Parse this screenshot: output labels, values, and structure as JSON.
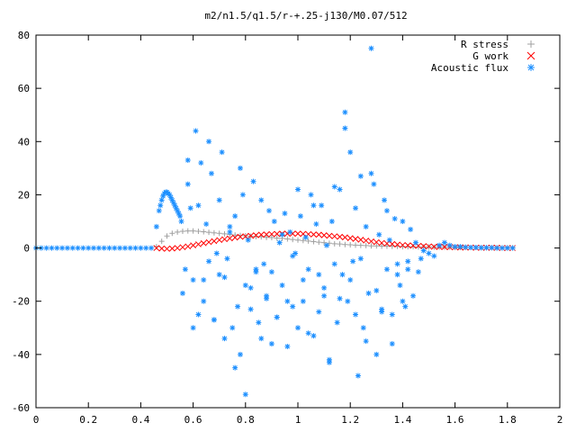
{
  "chart_data": {
    "type": "scatter",
    "title": "m2/n1.5/q1.5/r-+.25-j130/M0.07/512",
    "xlabel": "",
    "ylabel": "",
    "xlim": [
      0,
      2
    ],
    "ylim": [
      -60,
      80
    ],
    "x_ticks": [
      0,
      0.2,
      0.4,
      0.6,
      0.8,
      1,
      1.2,
      1.4,
      1.6,
      1.8,
      2
    ],
    "x_tick_labels": [
      "0",
      "0.2",
      "0.4",
      "0.6",
      "0.8",
      "1",
      "1.2",
      "1.4",
      "1.6",
      "1.8",
      "2"
    ],
    "y_ticks": [
      -60,
      -40,
      -20,
      0,
      20,
      40,
      60,
      80
    ],
    "y_tick_labels": [
      "-60",
      "-40",
      "-20",
      "0",
      "20",
      "40",
      "60",
      "80"
    ],
    "grid": false,
    "legend_position": "top-right",
    "series": [
      {
        "name": "R stress",
        "marker": "plus",
        "color": "#a0a0a0",
        "x": [
          0.46,
          0.48,
          0.5,
          0.52,
          0.54,
          0.56,
          0.58,
          0.6,
          0.62,
          0.64,
          0.66,
          0.68,
          0.7,
          0.72,
          0.74,
          0.76,
          0.78,
          0.8,
          0.82,
          0.84,
          0.86,
          0.88,
          0.9,
          0.92,
          0.94,
          0.96,
          0.98,
          1.0,
          1.02,
          1.04,
          1.06,
          1.08,
          1.1,
          1.12,
          1.14,
          1.16,
          1.18,
          1.2,
          1.22,
          1.24,
          1.26,
          1.28,
          1.3,
          1.32,
          1.34,
          1.36,
          1.38,
          1.4,
          1.42,
          1.44,
          1.46,
          1.48,
          1.5,
          1.52,
          1.54,
          1.56,
          1.58,
          1.6,
          1.62,
          1.64,
          1.66,
          1.68,
          1.7,
          1.72,
          1.74,
          1.76,
          1.78,
          1.8,
          1.82
        ],
        "y": [
          0.5,
          2.5,
          4.5,
          5.5,
          6.0,
          6.3,
          6.4,
          6.4,
          6.3,
          6.1,
          5.9,
          5.7,
          5.5,
          5.3,
          5.1,
          4.9,
          4.7,
          4.6,
          4.4,
          4.3,
          4.2,
          4.0,
          3.9,
          3.7,
          3.6,
          3.4,
          3.2,
          3.0,
          2.8,
          2.6,
          2.4,
          2.2,
          2.0,
          1.8,
          1.6,
          1.5,
          1.3,
          1.2,
          1.1,
          1.0,
          0.9,
          0.8,
          0.8,
          0.7,
          0.7,
          0.6,
          0.6,
          0.5,
          0.5,
          0.5,
          0.4,
          0.4,
          0.4,
          0.3,
          0.3,
          0.3,
          0.3,
          0.2,
          0.2,
          0.2,
          0.2,
          0.2,
          0.1,
          0.1,
          0.1,
          0.1,
          0.1,
          0.1,
          0.1
        ]
      },
      {
        "name": "G work",
        "marker": "cross",
        "color": "#ff0000",
        "x": [
          0.46,
          0.48,
          0.5,
          0.52,
          0.54,
          0.56,
          0.58,
          0.6,
          0.62,
          0.64,
          0.66,
          0.68,
          0.7,
          0.72,
          0.74,
          0.76,
          0.78,
          0.8,
          0.82,
          0.84,
          0.86,
          0.88,
          0.9,
          0.92,
          0.94,
          0.96,
          0.98,
          1.0,
          1.02,
          1.04,
          1.06,
          1.08,
          1.1,
          1.12,
          1.14,
          1.16,
          1.18,
          1.2,
          1.22,
          1.24,
          1.26,
          1.28,
          1.3,
          1.32,
          1.34,
          1.36,
          1.38,
          1.4,
          1.42,
          1.44,
          1.46,
          1.48,
          1.5,
          1.52,
          1.54,
          1.56,
          1.58,
          1.6,
          1.62,
          1.64,
          1.66,
          1.68,
          1.7,
          1.72,
          1.74,
          1.76,
          1.78,
          1.8,
          1.82
        ],
        "y": [
          0.0,
          -0.2,
          -0.3,
          -0.2,
          0.0,
          0.3,
          0.6,
          1.0,
          1.4,
          1.8,
          2.2,
          2.6,
          3.0,
          3.3,
          3.6,
          3.9,
          4.2,
          4.4,
          4.6,
          4.8,
          5.0,
          5.1,
          5.2,
          5.3,
          5.4,
          5.4,
          5.4,
          5.4,
          5.3,
          5.2,
          5.1,
          5.0,
          4.8,
          4.6,
          4.4,
          4.2,
          4.0,
          3.7,
          3.4,
          3.1,
          2.8,
          2.5,
          2.2,
          1.9,
          1.7,
          1.5,
          1.3,
          1.1,
          1.0,
          0.9,
          0.8,
          0.7,
          0.6,
          0.5,
          0.4,
          0.4,
          0.3,
          0.3,
          0.2,
          0.2,
          0.2,
          0.1,
          0.1,
          0.1,
          0.1,
          0.1,
          0.0,
          0.0,
          0.0
        ]
      },
      {
        "name": "Acoustic flux",
        "marker": "star",
        "color": "#1e90ff",
        "x": [
          0,
          0.02,
          0.04,
          0.06,
          0.08,
          0.1,
          0.12,
          0.14,
          0.16,
          0.18,
          0.2,
          0.22,
          0.24,
          0.26,
          0.28,
          0.3,
          0.32,
          0.34,
          0.36,
          0.38,
          0.4,
          0.42,
          0.44,
          0.46,
          0.47,
          0.475,
          0.48,
          0.485,
          0.49,
          0.495,
          0.5,
          0.505,
          0.51,
          0.515,
          0.52,
          0.525,
          0.53,
          0.535,
          0.54,
          0.545,
          0.55,
          0.555,
          0.57,
          0.58,
          0.59,
          0.6,
          0.61,
          0.62,
          0.63,
          0.64,
          0.65,
          0.66,
          0.67,
          0.68,
          0.69,
          0.7,
          0.71,
          0.72,
          0.73,
          0.74,
          0.75,
          0.76,
          0.77,
          0.78,
          0.79,
          0.8,
          0.81,
          0.82,
          0.83,
          0.84,
          0.85,
          0.86,
          0.87,
          0.88,
          0.89,
          0.9,
          0.91,
          0.92,
          0.93,
          0.94,
          0.95,
          0.96,
          0.97,
          0.98,
          0.99,
          1.0,
          1.01,
          1.02,
          1.03,
          1.04,
          1.05,
          1.06,
          1.07,
          1.08,
          1.09,
          1.1,
          1.11,
          1.12,
          1.13,
          1.14,
          1.15,
          1.16,
          1.17,
          1.18,
          1.19,
          1.2,
          1.21,
          1.22,
          1.23,
          1.24,
          1.25,
          1.26,
          1.27,
          1.28,
          1.29,
          1.3,
          1.31,
          1.32,
          1.33,
          1.34,
          1.35,
          1.36,
          1.37,
          1.38,
          1.39,
          1.4,
          1.41,
          1.42,
          1.43,
          1.44,
          1.45,
          1.46,
          1.47,
          1.48,
          1.5,
          1.52,
          1.54,
          1.56,
          1.58,
          1.6,
          1.62,
          1.64,
          1.66,
          1.68,
          1.7,
          1.72,
          1.74,
          1.76,
          1.78,
          1.8,
          1.82,
          0.56,
          0.58,
          0.6,
          0.62,
          0.64,
          0.66,
          0.68,
          0.7,
          0.72,
          0.74,
          0.76,
          0.78,
          0.8,
          0.82,
          0.84,
          0.86,
          0.88,
          0.9,
          0.92,
          0.94,
          0.96,
          0.98,
          1.0,
          1.02,
          1.04,
          1.06,
          1.08,
          1.1,
          1.12,
          1.14,
          1.16,
          1.18,
          1.2,
          1.22,
          1.24,
          1.26,
          1.28,
          1.3,
          1.32,
          1.34,
          1.36,
          1.38,
          1.4,
          1.42
        ],
        "y": [
          0,
          0,
          0,
          0,
          0,
          0,
          0,
          0,
          0,
          0,
          0,
          0,
          0,
          0,
          0,
          0,
          0,
          0,
          0,
          0,
          0,
          0,
          0,
          8,
          14,
          16,
          18,
          19.5,
          20.5,
          21,
          21,
          20.5,
          20,
          19,
          18,
          17,
          16,
          15,
          14,
          13,
          12,
          10,
          -8,
          24,
          15,
          -12,
          44,
          -25,
          32,
          -20,
          9,
          -5,
          28,
          -27,
          -2,
          -10,
          36,
          -34,
          -4,
          8,
          -30,
          12,
          -22,
          -40,
          20,
          -55,
          3,
          -15,
          25,
          -9,
          -28,
          18,
          -6,
          -18,
          14,
          -36,
          10,
          -26,
          2,
          -14,
          13,
          -20,
          6,
          -22,
          -2,
          -30,
          12,
          -12,
          4,
          -8,
          20,
          -33,
          9,
          -24,
          16,
          -18,
          1,
          -42,
          10,
          -6,
          -28,
          22,
          -10,
          45,
          -20,
          36,
          -5,
          15,
          -48,
          27,
          -30,
          8,
          -17,
          75,
          24,
          -40,
          5,
          -24,
          18,
          -8,
          3,
          -25,
          11,
          -6,
          -14,
          10,
          -22,
          -5,
          7,
          -18,
          2,
          -9,
          -4,
          -1,
          -2,
          -3,
          1,
          2,
          1,
          0.5,
          0.5,
          0.3,
          0.2,
          0.2,
          0.1,
          0.1,
          0.1,
          0,
          0,
          0,
          0,
          -17,
          33,
          -30,
          16,
          -12,
          40,
          -27,
          18,
          -11,
          6,
          -45,
          30,
          -14,
          -23,
          -8,
          -34,
          -19,
          -9,
          -26,
          5,
          -37,
          -3,
          22,
          -20,
          -32,
          16,
          -10,
          -15,
          -43,
          23,
          -19,
          51,
          -12,
          -25,
          -4,
          -35,
          28,
          -16,
          -23,
          14,
          -36,
          -10,
          -20,
          -8
        ]
      }
    ]
  }
}
